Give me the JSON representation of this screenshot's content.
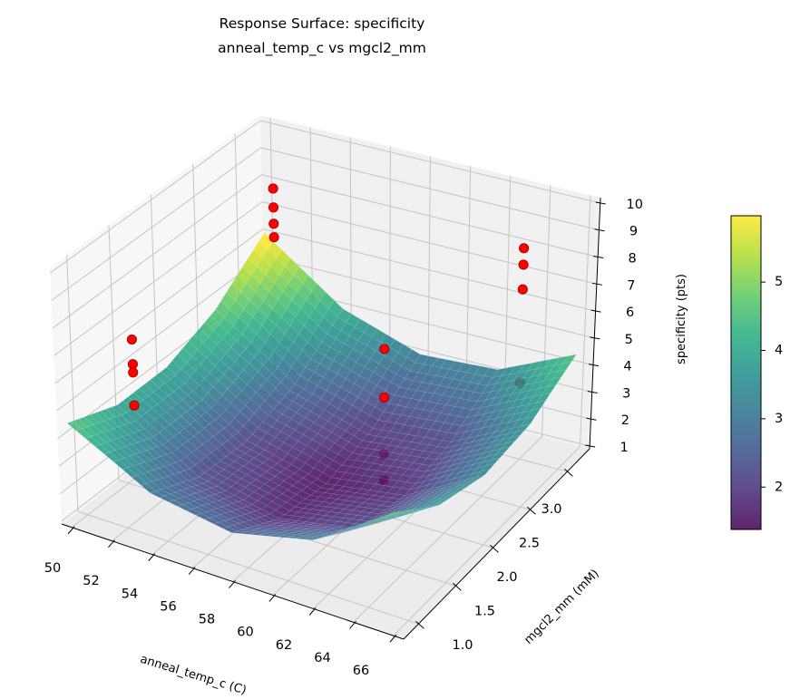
{
  "chart_data": {
    "type": "surface3d",
    "title": "Response Surface: specificity",
    "subtitle": "anneal_temp_c vs mgcl2_mm",
    "xlabel": "anneal_temp_c (C)",
    "ylabel": "mgcl2_mm (mM)",
    "zlabel": "specificity (pts)",
    "xlim": [
      49.5,
      66.5
    ],
    "ylim": [
      0.8,
      3.3
    ],
    "zlim": [
      0.9,
      10.2
    ],
    "xticks": [
      "50",
      "52",
      "54",
      "56",
      "58",
      "60",
      "62",
      "64",
      "66"
    ],
    "yticks": [
      "1.0",
      "1.5",
      "2.0",
      "2.5",
      "3.0"
    ],
    "zticks": [
      "1",
      "2",
      "3",
      "4",
      "5",
      "6",
      "7",
      "8",
      "9",
      "10"
    ],
    "grid": true,
    "colormap": "viridis",
    "surface": {
      "x": [
        50,
        54,
        58,
        62,
        66
      ],
      "y": [
        0.8,
        1.4,
        2.0,
        2.6,
        3.2
      ],
      "z": [
        [
          4.67,
          3.07,
          2.59,
          3.23,
          4.99
        ],
        [
          3.97,
          2.25,
          1.65,
          2.17,
          3.81
        ],
        [
          3.98,
          2.14,
          1.42,
          1.82,
          3.34
        ],
        [
          4.72,
          2.76,
          1.92,
          2.2,
          3.6
        ],
        [
          6.17,
          4.09,
          3.13,
          3.29,
          4.57
        ]
      ]
    },
    "scatter": {
      "color": "#ff0000",
      "points": [
        {
          "x": 50,
          "y": 1.6,
          "z": 5.9
        },
        {
          "x": 50,
          "y": 1.6,
          "z": 5.0
        },
        {
          "x": 50,
          "y": 1.6,
          "z": 4.7
        },
        {
          "x": 50,
          "y": 1.6,
          "z": 3.5
        },
        {
          "x": 50.5,
          "y": 3.2,
          "z": 7.9
        },
        {
          "x": 50.5,
          "y": 3.2,
          "z": 7.2
        },
        {
          "x": 50.5,
          "y": 3.2,
          "z": 6.6
        },
        {
          "x": 50.5,
          "y": 3.2,
          "z": 6.1
        },
        {
          "x": 61.7,
          "y": 1.8,
          "z": 7.4
        },
        {
          "x": 61.7,
          "y": 1.8,
          "z": 5.7
        },
        {
          "x": 61.7,
          "y": 1.8,
          "z": 3.7
        },
        {
          "x": 61.7,
          "y": 1.8,
          "z": 2.8
        },
        {
          "x": 64.3,
          "y": 2.9,
          "z": 8.9
        },
        {
          "x": 64.3,
          "y": 2.9,
          "z": 8.3
        },
        {
          "x": 64.3,
          "y": 2.9,
          "z": 7.4
        },
        {
          "x": 64.3,
          "y": 2.9,
          "z": 4.0
        }
      ]
    },
    "colorbar": {
      "range": [
        1.38,
        5.97
      ],
      "ticks": [
        "2",
        "3",
        "4",
        "5"
      ]
    }
  }
}
